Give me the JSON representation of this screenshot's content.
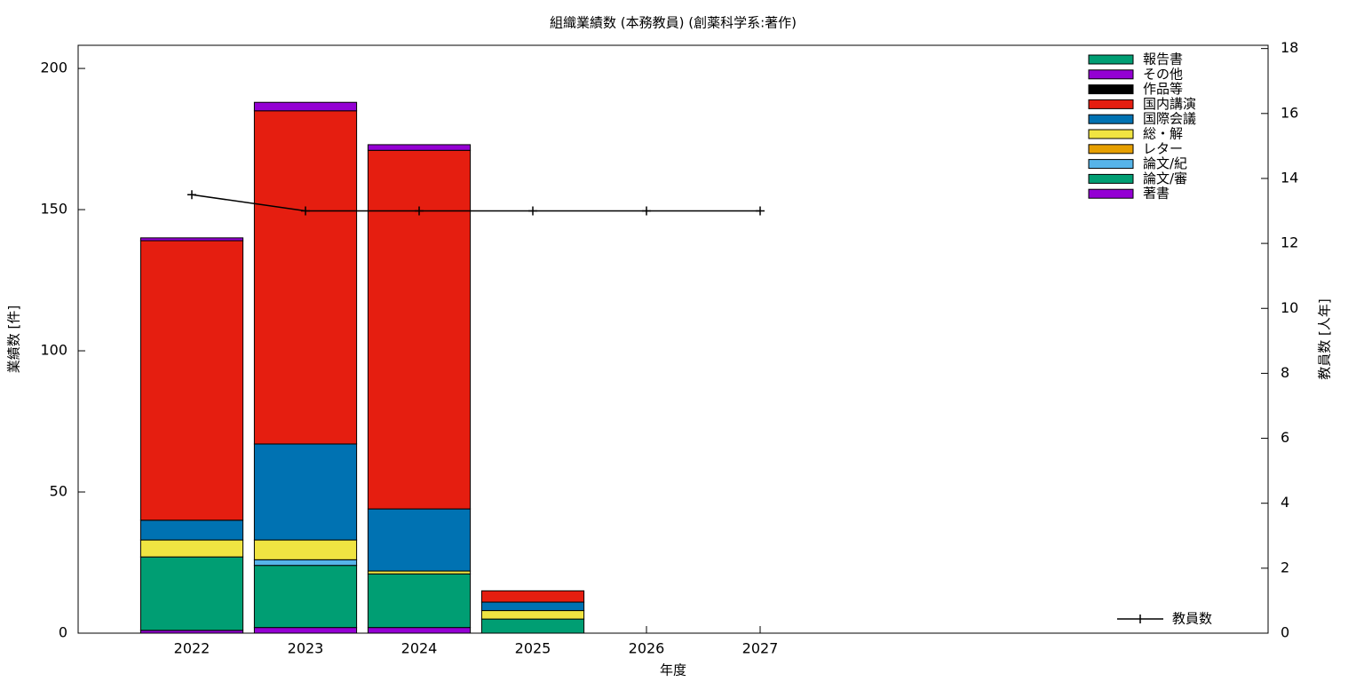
{
  "chart_data": {
    "type": "bar",
    "stacked": true,
    "title": "組織業績数 (本務教員) (創薬科学系:著作)",
    "x_label": "年度",
    "y_label": "業績数 [件]",
    "y2_label": "教員数 [人年]",
    "categories": [
      "2022",
      "2023",
      "2024",
      "2025",
      "2026",
      "2027"
    ],
    "series": [
      {
        "name": "著書",
        "color": "#9400d3",
        "values": [
          1,
          2,
          2,
          0,
          0,
          0
        ]
      },
      {
        "name": "論文/審",
        "color": "#009e73",
        "values": [
          26,
          22,
          19,
          5,
          0,
          0
        ]
      },
      {
        "name": "論文/紀",
        "color": "#56b4e9",
        "values": [
          0,
          2,
          0,
          0,
          0,
          0
        ]
      },
      {
        "name": "レター",
        "color": "#e69f00",
        "values": [
          0,
          0,
          0,
          0,
          0,
          0
        ]
      },
      {
        "name": "総・解",
        "color": "#f0e442",
        "values": [
          6,
          7,
          1,
          3,
          0,
          0
        ]
      },
      {
        "name": "国際会議",
        "color": "#0072b2",
        "values": [
          7,
          34,
          22,
          3,
          0,
          0
        ]
      },
      {
        "name": "国内講演",
        "color": "#e51e10",
        "values": [
          99,
          118,
          127,
          4,
          0,
          0
        ]
      },
      {
        "name": "作品等",
        "color": "#000000",
        "values": [
          0,
          0,
          0,
          0,
          0,
          0
        ]
      },
      {
        "name": "その他",
        "color": "#9400d3",
        "values": [
          1,
          3,
          2,
          0,
          0,
          0
        ]
      },
      {
        "name": "報告書",
        "color": "#009e73",
        "values": [
          0,
          0,
          0,
          0,
          0,
          0
        ]
      },
      {
        "name": "教員数",
        "type": "line",
        "axis": "y2",
        "color": "#000000",
        "values": [
          13.5,
          13,
          13,
          13,
          13,
          13
        ]
      }
    ],
    "ylim": [
      0,
      208.2
    ],
    "yticks": [
      0,
      50,
      100,
      150,
      200
    ],
    "y2lim": [
      0,
      18.1
    ],
    "y2ticks": [
      0,
      2,
      4,
      6,
      8,
      10,
      12,
      14,
      16,
      18
    ],
    "grid": false,
    "legend": "upper right"
  }
}
